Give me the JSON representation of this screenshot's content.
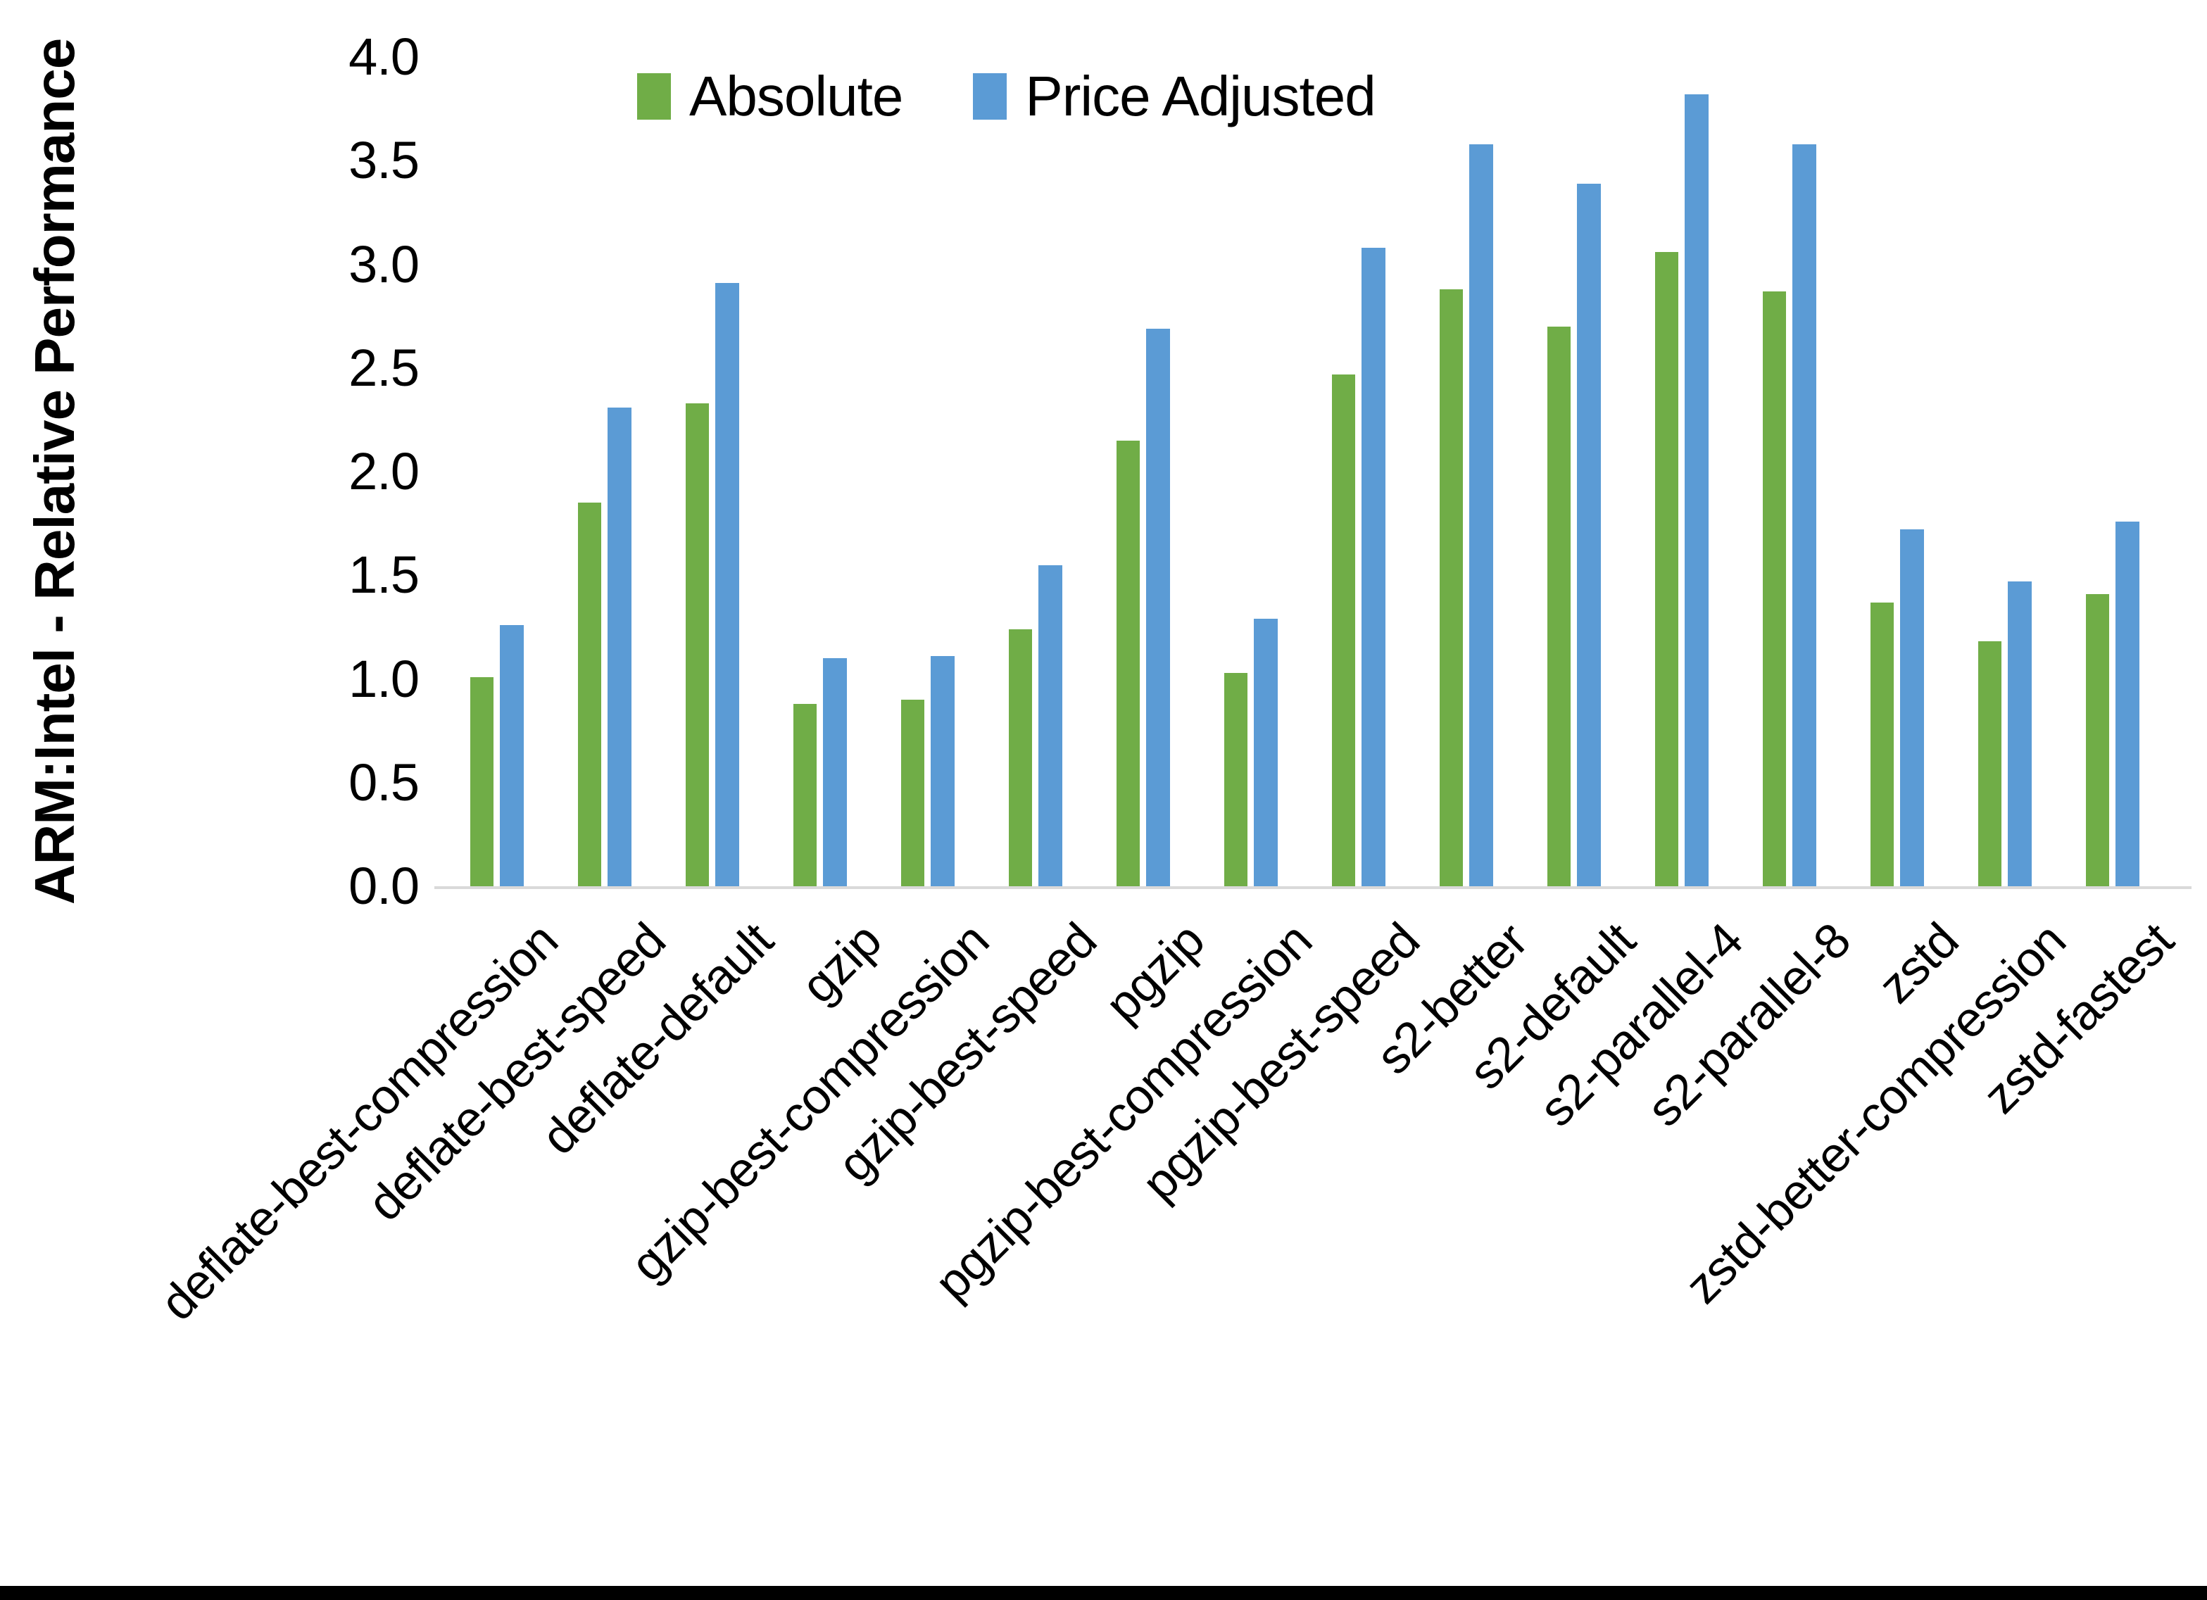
{
  "y_axis": {
    "title": "ARM:Intel - Relative Performance",
    "tick_labels": [
      "0.0",
      "0.5",
      "1.0",
      "1.5",
      "2.0",
      "2.5",
      "3.0",
      "3.5",
      "4.0"
    ],
    "min": 0,
    "max": 4
  },
  "legend": {
    "items": [
      {
        "label": "Absolute",
        "color": "#70AD47"
      },
      {
        "label": "Price Adjusted",
        "color": "#5B9BD5"
      }
    ]
  },
  "chart_data": {
    "type": "bar",
    "title": "",
    "categories": [
      "deflate-best-compression",
      "deflate-best-speed",
      "deflate-default",
      "gzip",
      "gzip-best-compression",
      "gzip-best-speed",
      "pgzip",
      "pgzip-best-compression",
      "pgzip-best-speed",
      "s2-better",
      "s2-default",
      "s2-parallel-4",
      "s2-parallel-8",
      "zstd",
      "zstd-better-compression",
      "zstd-fastest"
    ],
    "series": [
      {
        "name": "Absolute",
        "color": "#70AD47",
        "values": [
          1.01,
          1.85,
          2.33,
          0.88,
          0.9,
          1.24,
          2.15,
          1.03,
          2.47,
          2.88,
          2.7,
          3.06,
          2.87,
          1.37,
          1.18,
          1.41
        ]
      },
      {
        "name": "Price Adjusted",
        "color": "#5B9BD5",
        "values": [
          1.26,
          2.31,
          2.91,
          1.1,
          1.11,
          1.55,
          2.69,
          1.29,
          3.08,
          3.58,
          3.39,
          3.82,
          3.58,
          1.72,
          1.47,
          1.76
        ]
      }
    ],
    "xlabel": "",
    "ylabel": "ARM:Intel - Relative Performance",
    "ylim": [
      0,
      4
    ],
    "ytick_step": 0.5,
    "grid": false,
    "legend_position": "top-center",
    "axis_line_color": "#d9d9d9",
    "text_color": "#000000"
  }
}
